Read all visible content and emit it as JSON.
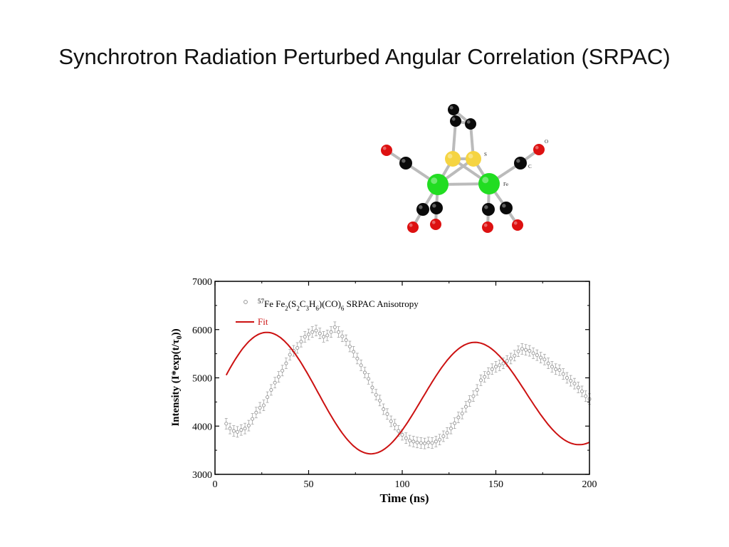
{
  "slide": {
    "title": "Synchrotron Radiation Perturbed Angular Correlation (SRPAC)"
  },
  "molecule": {
    "atom_labels": {
      "sulfur": "S",
      "oxygen": "O",
      "carbon": "C",
      "iron": "Fe"
    },
    "colors": {
      "iron": "#22dd22",
      "sulfur": "#f5d442",
      "carbon": "#0a0a0a",
      "oxygen": "#dd1111",
      "bond": "#bbbbbb"
    }
  },
  "chart_data": {
    "type": "scatter",
    "xlabel": "Time (ns)",
    "ylabel": {
      "prefix": "Intensity (I*exp(t/τ",
      "subscript": "0",
      "suffix": "))"
    },
    "xlim": [
      0,
      200
    ],
    "ylim": [
      3000,
      7000
    ],
    "xticks": [
      0,
      50,
      100,
      150,
      200
    ],
    "yticks": [
      3000,
      4000,
      5000,
      6000,
      7000
    ],
    "legend": {
      "position": "top-left",
      "data_entry": [
        {
          "text": "57",
          "sup": true
        },
        {
          "text": "Fe Fe"
        },
        {
          "text": "2",
          "sub": true
        },
        {
          "text": "(S"
        },
        {
          "text": "2",
          "sub": true
        },
        {
          "text": "C"
        },
        {
          "text": "3",
          "sub": true
        },
        {
          "text": "H"
        },
        {
          "text": "6",
          "sub": true
        },
        {
          "text": ")(CO)"
        },
        {
          "text": "6",
          "sub": true
        },
        {
          "text": " SRPAC Anisotropy"
        }
      ],
      "fit_entry": "Fit"
    },
    "colors": {
      "data": "#888888",
      "fit": "#cc1111",
      "axis": "#000000"
    },
    "fit_model": {
      "x_start": 6,
      "x_end": 200,
      "x_step": 1,
      "offset": 4630,
      "amplitude": 1370,
      "decay_ns": 650,
      "frequency_rad_per_ns": 0.0565,
      "phase_rad": -1.59
    },
    "series": [
      {
        "name": "SRPAC Anisotropy",
        "x": [
          6,
          8,
          10,
          12,
          14,
          16,
          18,
          20,
          22,
          24,
          26,
          28,
          30,
          32,
          34,
          36,
          38,
          40,
          42,
          44,
          46,
          48,
          50,
          52,
          54,
          56,
          58,
          60,
          62,
          64,
          66,
          68,
          70,
          72,
          74,
          76,
          78,
          80,
          82,
          84,
          86,
          88,
          90,
          92,
          94,
          96,
          98,
          100,
          102,
          104,
          106,
          108,
          110,
          112,
          114,
          116,
          118,
          120,
          122,
          124,
          126,
          128,
          130,
          132,
          134,
          136,
          138,
          140,
          142,
          144,
          146,
          148,
          150,
          152,
          154,
          156,
          158,
          160,
          162,
          164,
          166,
          168,
          170,
          172,
          174,
          176,
          178,
          180,
          182,
          184,
          186,
          188,
          190,
          192,
          194,
          196,
          198,
          200
        ],
        "y": [
          4050,
          3950,
          3900,
          3880,
          3920,
          3950,
          4010,
          4150,
          4280,
          4380,
          4430,
          4600,
          4750,
          4900,
          5020,
          5150,
          5300,
          5480,
          5560,
          5620,
          5750,
          5850,
          5900,
          5950,
          5980,
          5920,
          5850,
          5880,
          5950,
          6050,
          5950,
          5860,
          5780,
          5650,
          5540,
          5400,
          5260,
          5110,
          4980,
          4800,
          4650,
          4530,
          4350,
          4250,
          4100,
          4030,
          3900,
          3820,
          3750,
          3700,
          3680,
          3660,
          3650,
          3640,
          3660,
          3650,
          3680,
          3720,
          3790,
          3860,
          3950,
          4060,
          4180,
          4260,
          4400,
          4520,
          4620,
          4750,
          4950,
          5020,
          5100,
          5180,
          5230,
          5260,
          5300,
          5350,
          5400,
          5460,
          5550,
          5600,
          5580,
          5560,
          5510,
          5470,
          5420,
          5380,
          5300,
          5230,
          5180,
          5160,
          5080,
          5000,
          4940,
          4880,
          4800,
          4720,
          4620,
          4560
        ],
        "err": 110
      }
    ]
  }
}
